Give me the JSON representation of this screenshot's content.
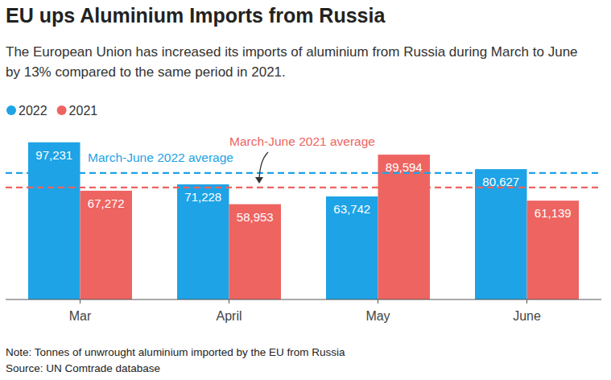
{
  "chart_data": {
    "type": "bar",
    "title": "EU ups Aluminium Imports from Russia",
    "subtitle": "The European Union has increased its imports of aluminium from Russia during March to June by 13% compared to the same period in 2021.",
    "note": "Note: Tonnes of unwrought aluminium imported by the EU from Russia",
    "source": "Source: UN Comtrade database",
    "categories": [
      "Mar",
      "April",
      "May",
      "June"
    ],
    "series": [
      {
        "name": "2022",
        "color": "#1ea3e6",
        "values": [
          97231,
          71228,
          63742,
          80627
        ],
        "value_labels": [
          "97,231",
          "71,228",
          "63,742",
          "80,627"
        ]
      },
      {
        "name": "2021",
        "color": "#ee6461",
        "values": [
          67272,
          58953,
          89594,
          61139
        ],
        "value_labels": [
          "67,272",
          "58,953",
          "89,594",
          "61,139"
        ]
      }
    ],
    "reference_lines": [
      {
        "value": 78207,
        "label": "March-June 2022 average",
        "color": "#1ea3e6"
      },
      {
        "value": 69240,
        "label": "March-June 2021 average",
        "color": "#ee6461"
      }
    ],
    "ylim": [
      0,
      105000
    ],
    "data_labels": true,
    "tick_labels": "x",
    "grid": false,
    "legend": "top-left"
  }
}
